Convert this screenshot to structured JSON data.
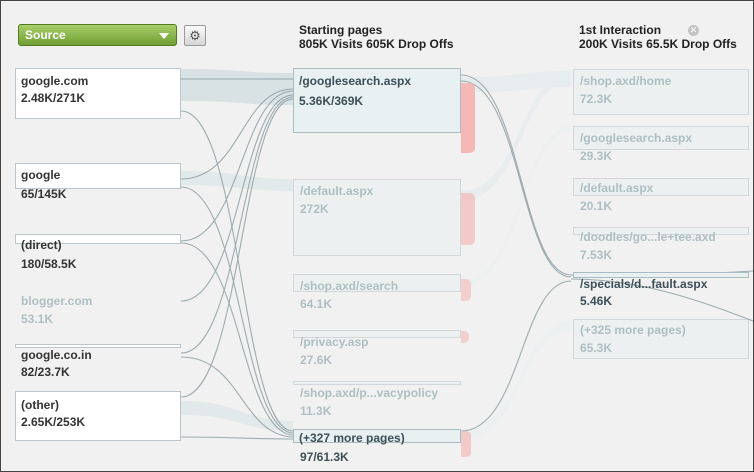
{
  "toolbar": {
    "dimension_select": "Source",
    "settings_icon": "gear-icon"
  },
  "columns": {
    "starting": {
      "title": "Starting pages",
      "summary": "805K Visits 605K Drop Offs"
    },
    "first": {
      "title": "1st Interaction",
      "summary": "200K Visits 65.5K Drop Offs",
      "close_icon": "close-circle-icon"
    }
  },
  "sources": [
    {
      "name": "google.com",
      "value": "2.48K/271K"
    },
    {
      "name": "google",
      "value": "65/145K"
    },
    {
      "name": "(direct)",
      "value": "180/58.5K"
    },
    {
      "name": "blogger.com",
      "value": "53.1K"
    },
    {
      "name": "google.co.in",
      "value": "82/23.7K"
    },
    {
      "name": "(other)",
      "value": "2.65K/253K"
    }
  ],
  "starting_pages": [
    {
      "name": "/googlesearch.aspx",
      "value": "5.36K/369K"
    },
    {
      "name": "/default.aspx",
      "value": "272K"
    },
    {
      "name": "/shop.axd/search",
      "value": "64.1K"
    },
    {
      "name": "/privacy.asp",
      "value": "27.6K"
    },
    {
      "name": "/shop.axd/p...vacypolicy",
      "value": "11.3K"
    },
    {
      "name": "(+327 more pages)",
      "value": "97/61.3K"
    }
  ],
  "first_interaction": [
    {
      "name": "/shop.axd/home",
      "value": "72.3K"
    },
    {
      "name": "/googlesearch.aspx",
      "value": "29.3K"
    },
    {
      "name": "/default.aspx",
      "value": "20.1K"
    },
    {
      "name": "/doodles/go...le+tee.axd",
      "value": "7.53K"
    },
    {
      "name": "/specials/d...fault.aspx",
      "value": "5.46K"
    },
    {
      "name": "(+325 more pages)",
      "value": "65.3K"
    }
  ],
  "colors": {
    "dropdown": "#7fac45",
    "node_border": "#b9c7cc",
    "dropoff": "#f4b9b5",
    "flow_line": "#7f9499",
    "flow_band": "#d7e1e3"
  }
}
